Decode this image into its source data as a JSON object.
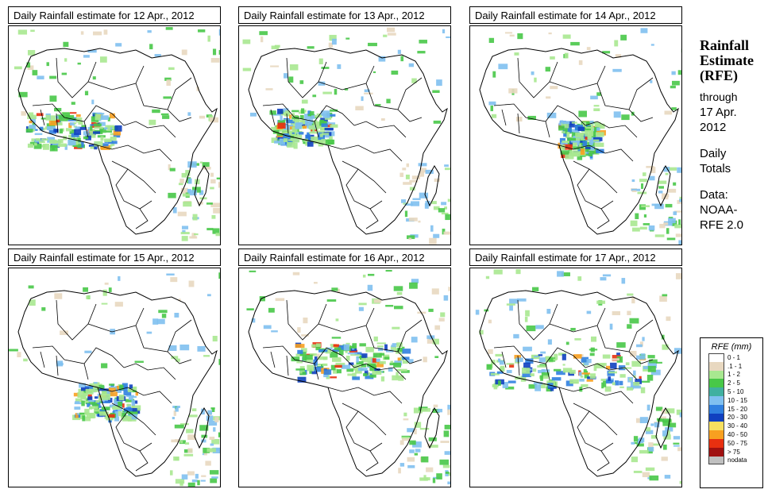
{
  "panels": [
    {
      "title": "Daily Rainfall estimate for  12 Apr., 2012"
    },
    {
      "title": "Daily Rainfall estimate for  13 Apr., 2012"
    },
    {
      "title": "Daily Rainfall estimate for  14 Apr., 2012"
    },
    {
      "title": "Daily Rainfall estimate for  15 Apr., 2012"
    },
    {
      "title": "Daily Rainfall estimate for  16 Apr., 2012"
    },
    {
      "title": "Daily Rainfall estimate for  17 Apr., 2012"
    }
  ],
  "side": {
    "heading1": "Rainfall",
    "heading2": "Estimate",
    "heading3": "(RFE)",
    "through": "through",
    "date1": "17 Apr.",
    "date2": "2012",
    "daily": "Daily",
    "totals": "Totals",
    "data_label": "Data:",
    "source1": "NOAA-",
    "source2": "RFE 2.0"
  },
  "legend": {
    "title": "RFE (mm)",
    "items": [
      {
        "label": "0 - 1",
        "color": "#ffffff"
      },
      {
        "label": ".1 - 1",
        "color": "#e8d8c0"
      },
      {
        "label": "1 - 2",
        "color": "#a8e890"
      },
      {
        "label": "2 - 5",
        "color": "#48c848"
      },
      {
        "label": "5 - 10",
        "color": "#40b0a0"
      },
      {
        "label": "10 - 15",
        "color": "#80c0f0"
      },
      {
        "label": "15 - 20",
        "color": "#3080e0"
      },
      {
        "label": "20 - 30",
        "color": "#1040c0"
      },
      {
        "label": "30 - 40",
        "color": "#f8e060"
      },
      {
        "label": "40 - 50",
        "color": "#f8a020"
      },
      {
        "label": "50 - 75",
        "color": "#e83010"
      },
      {
        "label": "> 75",
        "color": "#a01010"
      },
      {
        "label": "nodata",
        "color": "#c0c0c0"
      }
    ]
  }
}
